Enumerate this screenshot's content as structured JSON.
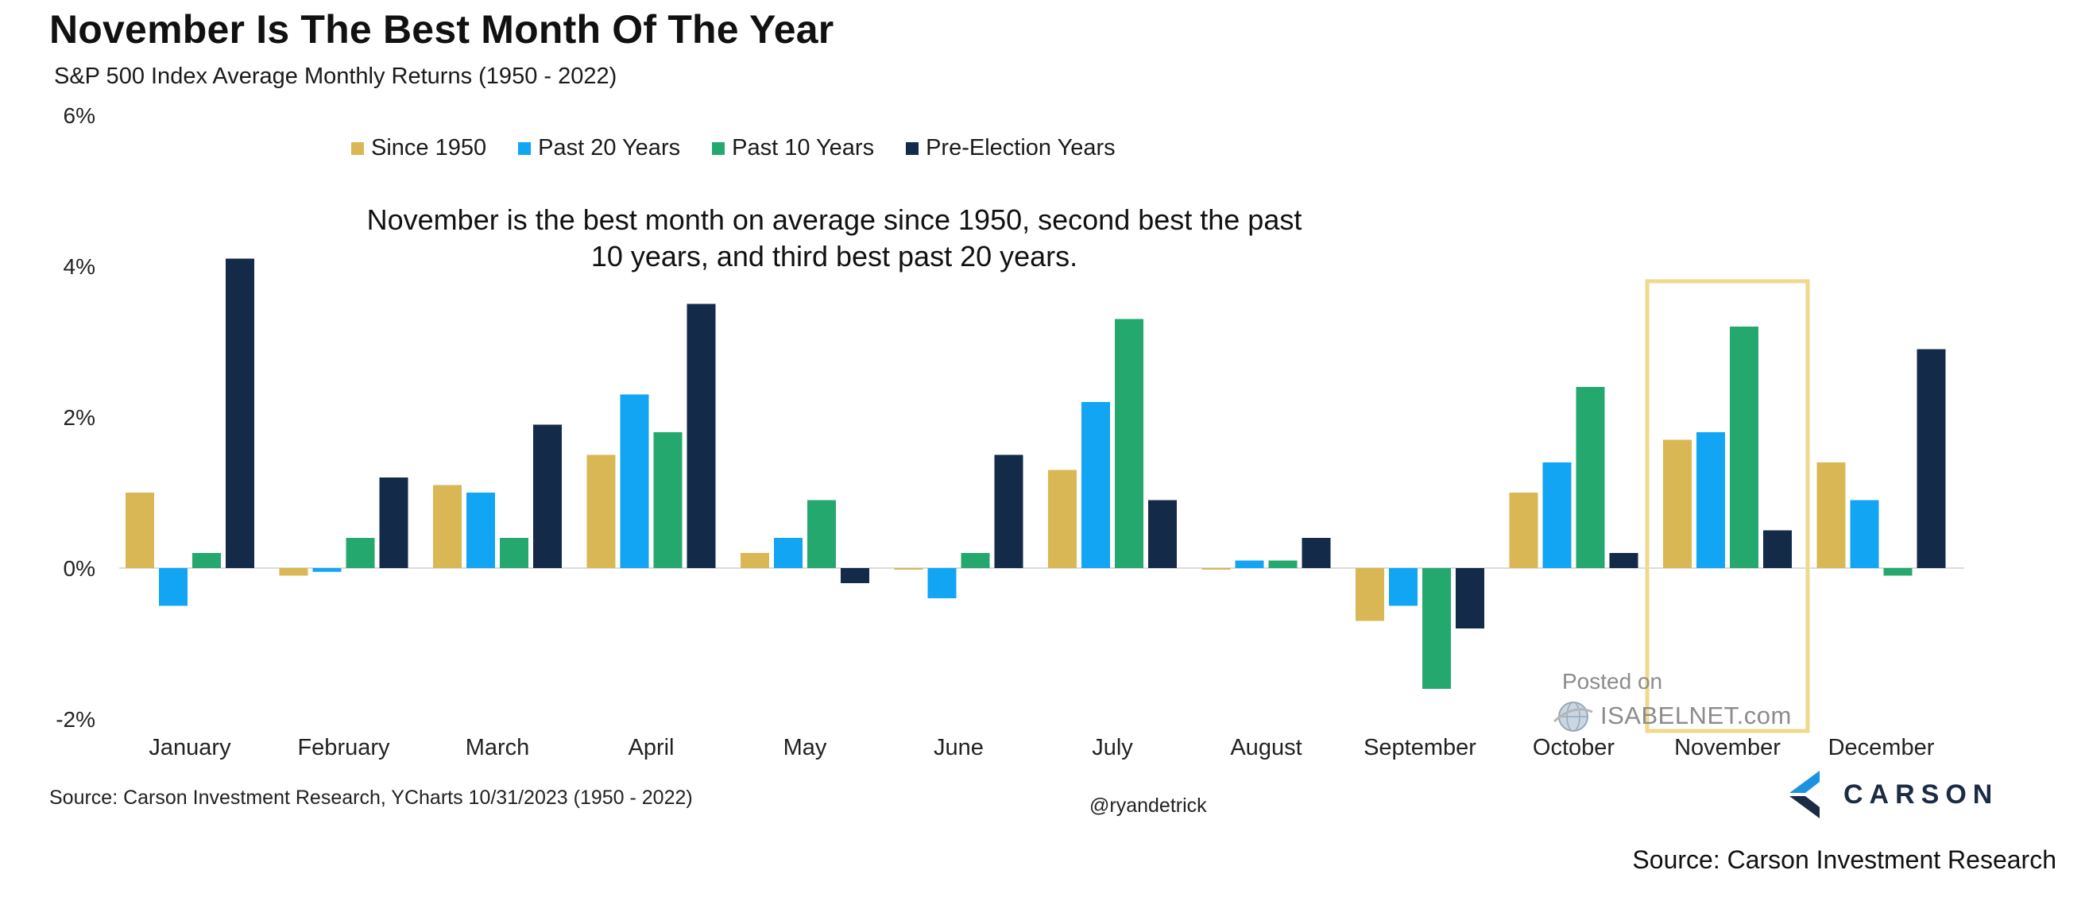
{
  "title": "November Is The Best Month Of The Year",
  "subtitle": "S&P 500 Index Average Monthly Returns (1950 - 2022)",
  "annotation": "November is the best month on average since 1950, second best the past 10 years, and third best past 20 years.",
  "source_line": "Source: Carson Investment Research, YCharts 10/31/2023 (1950 - 2022)",
  "handle": "@ryandetrick",
  "footer_source": "Source: Carson Investment Research",
  "watermark": {
    "posted": "Posted on",
    "brand": "ISABELNET.com",
    "icon": "globe-icon"
  },
  "logo": {
    "wordmark": "CARSON",
    "icon": "carson-chevron-icon"
  },
  "colors": {
    "since_1950": "#D9B754",
    "past_20": "#12A5F4",
    "past_10": "#25A86E",
    "pre_election": "#132A48",
    "highlight_box": "#EED98C"
  },
  "chart_data": {
    "type": "bar",
    "title": "November Is The Best Month Of The Year",
    "subtitle": "S&P 500 Index Average Monthly Returns (1950 - 2022)",
    "categories": [
      "January",
      "February",
      "March",
      "April",
      "May",
      "June",
      "July",
      "August",
      "September",
      "October",
      "November",
      "December"
    ],
    "series": [
      {
        "name": "Since 1950",
        "color": "#D9B754",
        "values": [
          1.0,
          -0.1,
          1.1,
          1.5,
          0.2,
          0.0,
          1.3,
          0.0,
          -0.7,
          1.0,
          1.7,
          1.4
        ]
      },
      {
        "name": "Past 20 Years",
        "color": "#12A5F4",
        "values": [
          -0.5,
          -0.05,
          1.0,
          2.3,
          0.4,
          -0.4,
          2.2,
          0.1,
          -0.5,
          1.4,
          1.8,
          0.9
        ]
      },
      {
        "name": "Past 10 Years",
        "color": "#25A86E",
        "values": [
          0.2,
          0.4,
          0.4,
          1.8,
          0.9,
          0.2,
          3.3,
          0.1,
          -1.6,
          2.4,
          3.2,
          -0.1
        ]
      },
      {
        "name": "Pre-Election Years",
        "color": "#132A48",
        "values": [
          4.1,
          1.2,
          1.9,
          3.5,
          -0.2,
          1.5,
          0.9,
          0.4,
          -0.8,
          0.2,
          0.5,
          2.9
        ]
      }
    ],
    "yticks": [
      "6%",
      "4%",
      "2%",
      "0%",
      "-2%"
    ],
    "ytick_values": [
      6,
      4,
      2,
      0,
      -2
    ],
    "ylim": [
      -2,
      6
    ],
    "xlabel": "",
    "ylabel": "",
    "legend_position": "top",
    "grid": false,
    "highlight_category": "November"
  }
}
